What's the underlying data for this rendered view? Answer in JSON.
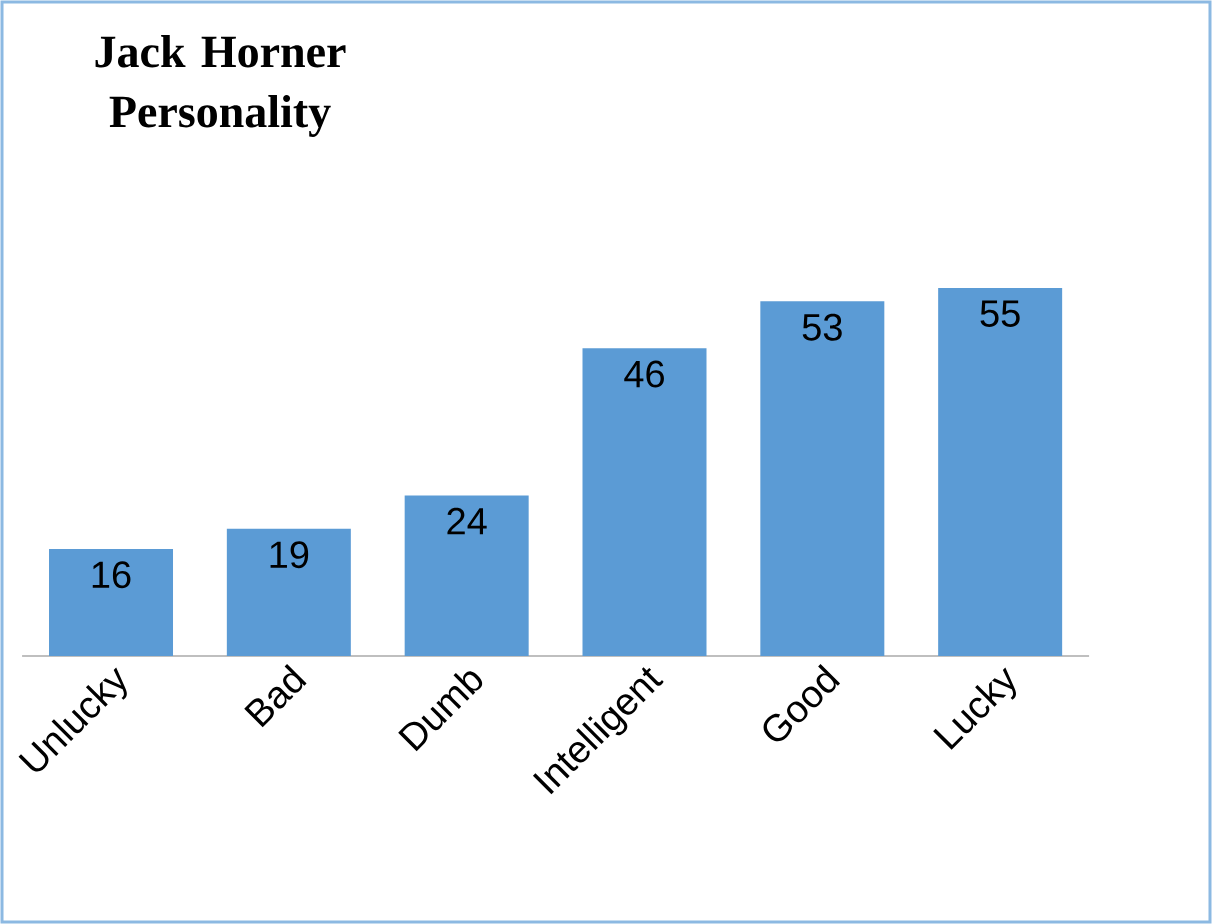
{
  "chart_data": {
    "type": "bar",
    "title": "Jack Horner Personality",
    "categories": [
      "Unlucky",
      "Bad",
      "Dumb",
      "Intelligent",
      "Good",
      "Lucky"
    ],
    "values": [
      16,
      19,
      24,
      46,
      53,
      55
    ],
    "color": "#5b9bd5",
    "data_labels": true
  }
}
